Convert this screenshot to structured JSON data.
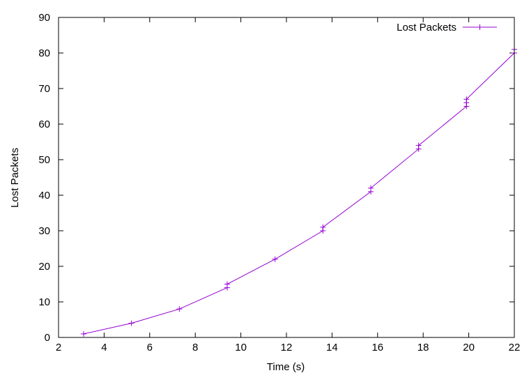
{
  "chart_data": {
    "type": "line",
    "title": "",
    "xlabel": "Time (s)",
    "ylabel": "Lost Packets",
    "xlim": [
      2,
      22
    ],
    "ylim": [
      0,
      90
    ],
    "x_ticks": [
      2,
      4,
      6,
      8,
      10,
      12,
      14,
      16,
      18,
      20,
      22
    ],
    "y_ticks": [
      0,
      10,
      20,
      30,
      40,
      50,
      60,
      70,
      80,
      90
    ],
    "grid": false,
    "legend_position": "top-right",
    "series": [
      {
        "name": "Lost Packets",
        "color": "#9400d3",
        "marker": "plus",
        "points": [
          [
            3.1,
            1
          ],
          [
            5.2,
            4
          ],
          [
            7.3,
            8
          ],
          [
            9.4,
            14
          ],
          [
            9.4,
            15
          ],
          [
            11.5,
            22
          ],
          [
            13.6,
            30
          ],
          [
            13.6,
            31
          ],
          [
            15.7,
            41
          ],
          [
            15.7,
            42
          ],
          [
            17.8,
            53
          ],
          [
            17.8,
            54
          ],
          [
            19.9,
            65
          ],
          [
            19.9,
            66
          ],
          [
            19.9,
            67
          ],
          [
            22.0,
            80
          ],
          [
            22.0,
            81
          ]
        ]
      }
    ]
  }
}
